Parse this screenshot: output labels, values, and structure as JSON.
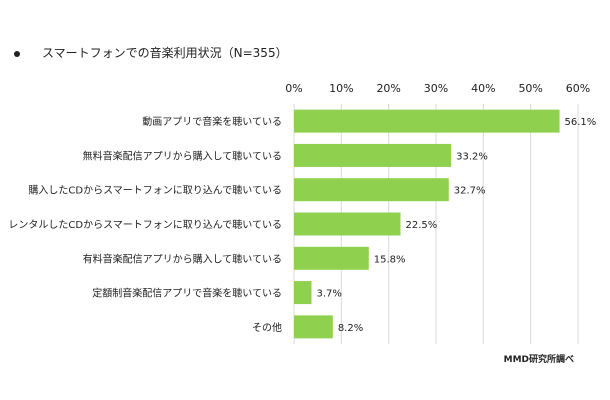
{
  "chart_data": {
    "type": "bar",
    "orientation": "horizontal",
    "title": "スマートフォンでの音楽利用状況（N=355）",
    "categories": [
      "動画アプリで音楽を聴いている",
      "無料音楽配信アプリから購入して聴いている",
      "購入したCDからスマートフォンに取り込んで聴いている",
      "レンタルしたCDからスマートフォンに取り込んで聴いている",
      "有料音楽配信アプリから購入して聴いている",
      "定額制音楽配信アプリで音楽を聴いている",
      "その他"
    ],
    "values": [
      56.1,
      33.2,
      32.7,
      22.5,
      15.8,
      3.7,
      8.2
    ],
    "value_labels": [
      "56.1%",
      "33.2%",
      "32.7%",
      "22.5%",
      "15.8%",
      "3.7%",
      "8.2%"
    ],
    "xlim": [
      0,
      60
    ],
    "ticks": [
      "0%",
      "10%",
      "20%",
      "30%",
      "40%",
      "50%",
      "60%"
    ],
    "tick_values": [
      0,
      10,
      20,
      30,
      40,
      50,
      60
    ],
    "axis_position": "top",
    "grid": true,
    "bar_color": "#8fd14f",
    "grid_color": "#d9d9d9"
  },
  "source": "MMD研究所調べ"
}
